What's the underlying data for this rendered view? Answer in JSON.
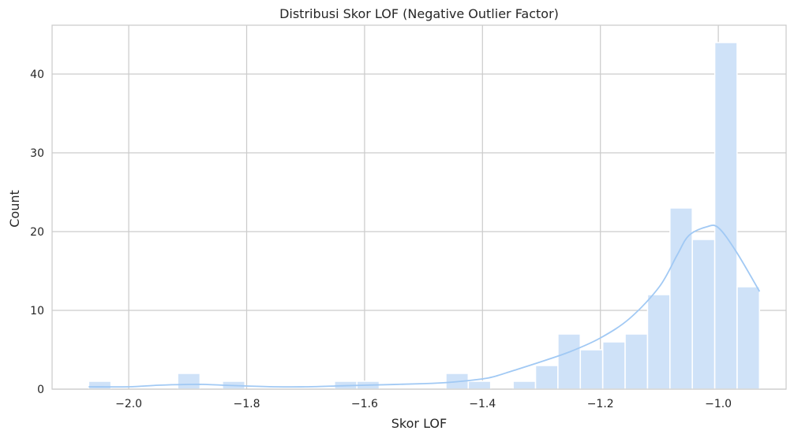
{
  "chart_data": {
    "type": "bar",
    "title": "Distribusi Skor LOF (Negative Outlier Factor)",
    "xlabel": "Skor LOF",
    "ylabel": "Count",
    "xlim": [
      -2.13,
      -0.885
    ],
    "ylim": [
      0,
      46.2
    ],
    "grid": true,
    "bar_color": "#cfe2f8",
    "kde_color": "#a1c9f4",
    "grid_color": "#cccccc",
    "bin_width": 0.0379,
    "x_ticks": [
      {
        "value": -2.0,
        "label": "−2.0"
      },
      {
        "value": -1.8,
        "label": "−1.8"
      },
      {
        "value": -1.6,
        "label": "−1.6"
      },
      {
        "value": -1.4,
        "label": "−1.4"
      },
      {
        "value": -1.2,
        "label": "−1.2"
      },
      {
        "value": -1.0,
        "label": "−1.0"
      }
    ],
    "y_ticks": [
      {
        "value": 0,
        "label": "0"
      },
      {
        "value": 10,
        "label": "10"
      },
      {
        "value": 20,
        "label": "20"
      },
      {
        "value": 30,
        "label": "30"
      },
      {
        "value": 40,
        "label": "40"
      }
    ],
    "bins": [
      {
        "x0": -2.068,
        "count": 1
      },
      {
        "x0": -1.917,
        "count": 2
      },
      {
        "x0": -1.841,
        "count": 1
      },
      {
        "x0": -1.651,
        "count": 1
      },
      {
        "x0": -1.613,
        "count": 1
      },
      {
        "x0": -1.462,
        "count": 2
      },
      {
        "x0": -1.424,
        "count": 1
      },
      {
        "x0": -1.348,
        "count": 1
      },
      {
        "x0": -1.31,
        "count": 3
      },
      {
        "x0": -1.272,
        "count": 7
      },
      {
        "x0": -1.234,
        "count": 5
      },
      {
        "x0": -1.196,
        "count": 6
      },
      {
        "x0": -1.158,
        "count": 7
      },
      {
        "x0": -1.12,
        "count": 12
      },
      {
        "x0": -1.082,
        "count": 23
      },
      {
        "x0": -1.044,
        "count": 19
      },
      {
        "x0": -1.006,
        "count": 44
      },
      {
        "x0": -0.968,
        "count": 13
      }
    ],
    "kde": {
      "x": [
        -2.068,
        -2.0,
        -1.95,
        -1.9,
        -1.87,
        -1.84,
        -1.8,
        -1.75,
        -1.7,
        -1.65,
        -1.6,
        -1.5,
        -1.45,
        -1.4,
        -1.38,
        -1.35,
        -1.3,
        -1.25,
        -1.2,
        -1.15,
        -1.1,
        -1.07,
        -1.05,
        -1.02,
        -1.0,
        -0.97,
        -0.93
      ],
      "y": [
        0.3,
        0.3,
        0.5,
        0.6,
        0.6,
        0.5,
        0.4,
        0.3,
        0.3,
        0.4,
        0.5,
        0.7,
        0.9,
        1.3,
        1.6,
        2.3,
        3.5,
        4.8,
        6.5,
        9.0,
        13.0,
        17.0,
        19.5,
        20.6,
        20.5,
        17.5,
        12.4
      ]
    }
  }
}
